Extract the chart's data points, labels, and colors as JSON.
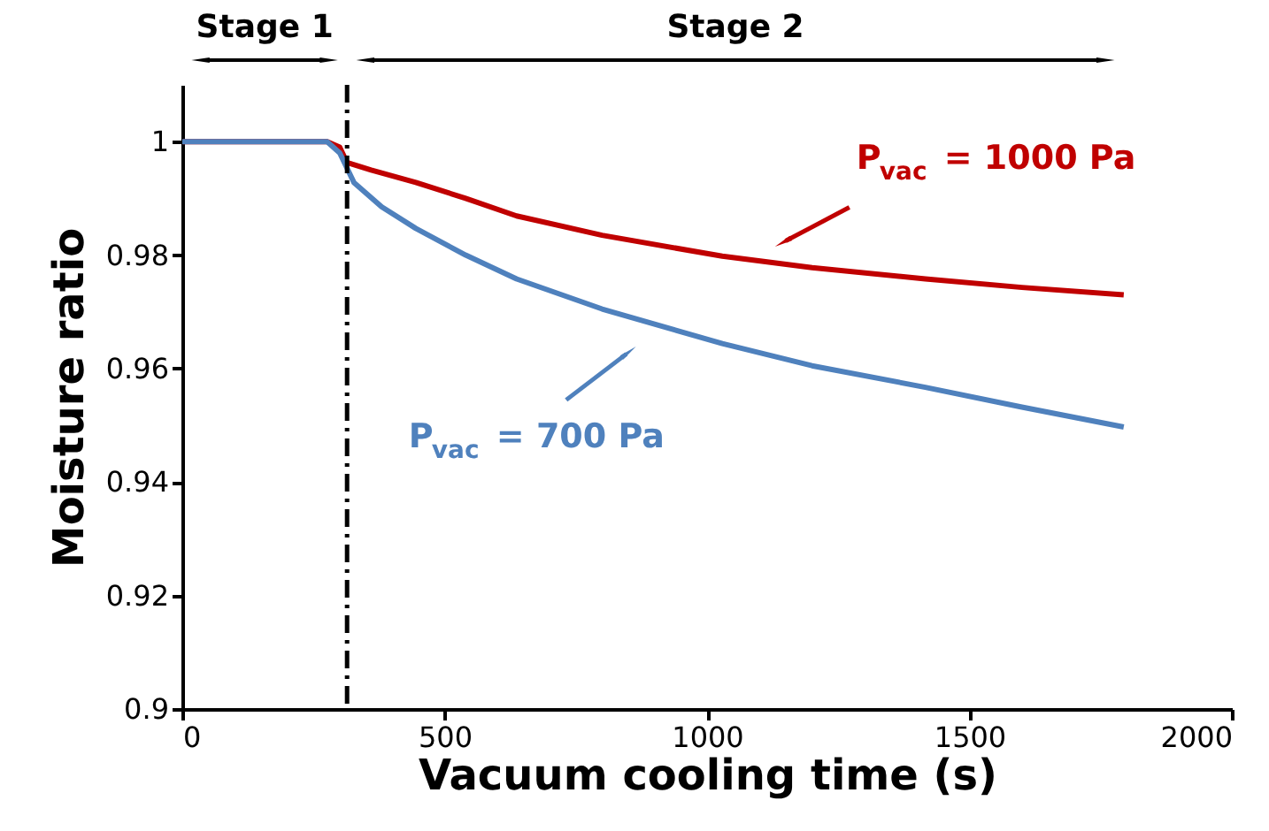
{
  "chart_data": {
    "type": "line",
    "xlabel": "Vacuum cooling time (s)",
    "ylabel": "Moisture ratio",
    "xlim": [
      0,
      2000
    ],
    "xticks": [
      0,
      500,
      1000,
      1500,
      2000
    ],
    "ylim": [
      0.9,
      1.01
    ],
    "yticks": [
      0.9,
      0.92,
      0.94,
      0.96,
      0.98,
      1
    ],
    "grid": false,
    "marker": "none",
    "line_style": "solid",
    "series": [
      {
        "color": "#c00000",
        "x": [
          0,
          276,
          300,
          314,
          360,
          445,
          540,
          637,
          800,
          1029,
          1200,
          1416,
          1600,
          1794
        ],
        "values": [
          1,
          1,
          0.999,
          0.9963,
          0.995,
          0.9928,
          0.99,
          0.9869,
          0.9835,
          0.9798,
          0.9778,
          0.9758,
          0.9743,
          0.973
        ]
      },
      {
        "color": "#4f81bd",
        "x": [
          0,
          276,
          300,
          327,
          380,
          445,
          540,
          637,
          800,
          1029,
          1200,
          1416,
          1600,
          1794
        ],
        "values": [
          1,
          1,
          0.998,
          0.9928,
          0.9885,
          0.9847,
          0.98,
          0.9758,
          0.9705,
          0.9644,
          0.9605,
          0.9567,
          0.9532,
          0.9497
        ]
      }
    ],
    "ref_lines": [
      {
        "axis": "x",
        "value": 314,
        "line_style": "dashed",
        "color": "#000000"
      }
    ],
    "annotations": [
      {
        "text": "P$_{vac}$ = 1000 Pa",
        "x": 1143,
        "y": 0.9828
      },
      {
        "text": "P$_{vac}$ = 700 Pa",
        "x": 853,
        "y": 0.9632
      },
      "Stage 1",
      "Stage 2"
    ]
  }
}
